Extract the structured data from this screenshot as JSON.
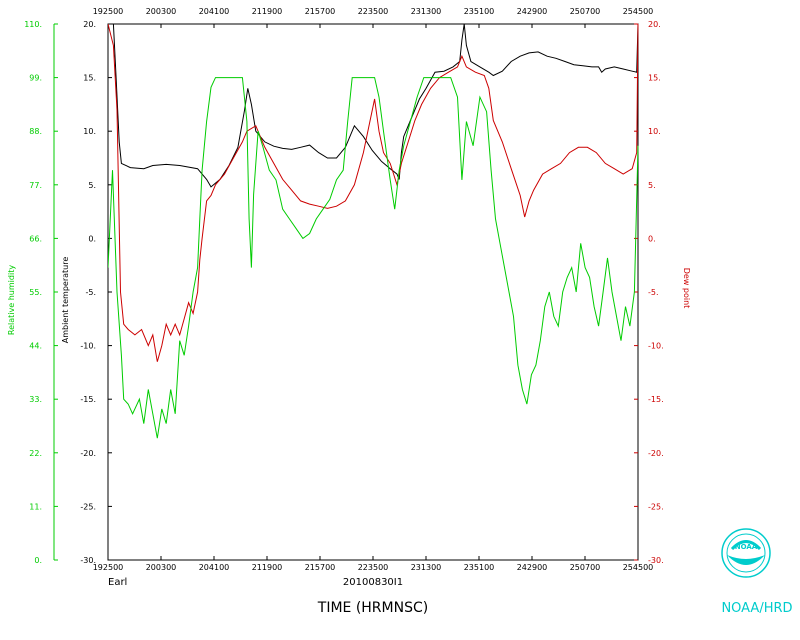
{
  "chart_data": {
    "type": "line",
    "time_ticks": [
      "192500",
      "200300",
      "204100",
      "211900",
      "215700",
      "223500",
      "231300",
      "235100",
      "242900",
      "250700",
      "254500"
    ],
    "time_range": [
      0,
      10
    ],
    "xlabel": "TIME (HRMNSC)",
    "flight_id": "20100830I1",
    "storm_name": "Earl",
    "agency": "NOAA/HRD",
    "logo_text": "NOAA",
    "rh_axis": {
      "label": "Relative humidity",
      "ticks": [
        "0.",
        "11.",
        "22.",
        "33.",
        "44.",
        "55.",
        "66.",
        "77.",
        "88.",
        "99.",
        "110."
      ],
      "range": [
        0,
        110
      ],
      "color": "#00cc00"
    },
    "temp_axis": {
      "label": "Ambient temperature",
      "ticks": [
        "-30.",
        "-25.",
        "-20.",
        "-15.",
        "-10.",
        "-5.",
        "0.",
        "5.",
        "10.",
        "15.",
        "20."
      ],
      "range": [
        -30,
        20
      ],
      "color": "#000000"
    },
    "dew_axis": {
      "label": "Dew point",
      "ticks": [
        "-30.",
        "-25.",
        "-20.",
        "-15.",
        "-10.",
        "-5.",
        "0.",
        "5.",
        "10.",
        "15.",
        "20."
      ],
      "range": [
        -30,
        20
      ],
      "color": "#cc0000"
    },
    "series": [
      {
        "key": "temperature",
        "color": "#000000",
        "points": [
          [
            0.0,
            20
          ],
          [
            0.12,
            20
          ],
          [
            0.18,
            15
          ],
          [
            0.25,
            9
          ],
          [
            0.3,
            7
          ],
          [
            0.5,
            6.6
          ],
          [
            0.8,
            6.5
          ],
          [
            1.0,
            6.8
          ],
          [
            1.3,
            6.9
          ],
          [
            1.6,
            6.8
          ],
          [
            2.0,
            6.5
          ],
          [
            2.2,
            5.5
          ],
          [
            2.3,
            4.8
          ],
          [
            2.5,
            5.5
          ],
          [
            2.7,
            6.8
          ],
          [
            2.9,
            8.5
          ],
          [
            3.05,
            12
          ],
          [
            3.12,
            14
          ],
          [
            3.2,
            12.5
          ],
          [
            3.3,
            10
          ],
          [
            3.5,
            9
          ],
          [
            3.7,
            8.6
          ],
          [
            3.9,
            8.4
          ],
          [
            4.1,
            8.3
          ],
          [
            4.3,
            8.5
          ],
          [
            4.5,
            8.7
          ],
          [
            4.7,
            8.0
          ],
          [
            4.9,
            7.5
          ],
          [
            5.1,
            7.5
          ],
          [
            5.3,
            8.5
          ],
          [
            5.5,
            10.5
          ],
          [
            5.7,
            9.5
          ],
          [
            5.9,
            8.2
          ],
          [
            6.1,
            7.2
          ],
          [
            6.3,
            6.5
          ],
          [
            6.45,
            6.0
          ],
          [
            6.5,
            5.5
          ],
          [
            6.55,
            8.0
          ],
          [
            6.6,
            9.5
          ],
          [
            6.75,
            11
          ],
          [
            6.85,
            12
          ],
          [
            6.95,
            13
          ],
          [
            7.1,
            14
          ],
          [
            7.3,
            15.5
          ],
          [
            7.5,
            15.6
          ],
          [
            7.7,
            16.0
          ],
          [
            7.85,
            16.5
          ],
          [
            7.9,
            18.5
          ],
          [
            7.95,
            20
          ],
          [
            8.0,
            18
          ],
          [
            8.1,
            16.5
          ],
          [
            8.3,
            16.0
          ],
          [
            8.5,
            15.5
          ],
          [
            8.6,
            15.2
          ],
          [
            8.8,
            15.6
          ],
          [
            9.0,
            16.5
          ],
          [
            9.2,
            17.0
          ],
          [
            9.4,
            17.3
          ],
          [
            9.6,
            17.4
          ],
          [
            9.8,
            17.0
          ],
          [
            10.0,
            16.8
          ],
          [
            10.2,
            16.5
          ],
          [
            10.4,
            16.2
          ],
          [
            10.6,
            16.1
          ],
          [
            10.8,
            16.0
          ],
          [
            10.95,
            16.0
          ],
          [
            11.02,
            15.5
          ],
          [
            11.1,
            15.8
          ],
          [
            11.3,
            16.0
          ],
          [
            11.5,
            15.8
          ],
          [
            11.7,
            15.6
          ],
          [
            11.8,
            15.5
          ],
          [
            11.83,
            20
          ]
        ]
      },
      {
        "key": "dew_point",
        "color": "#cc0000",
        "points": [
          [
            0.0,
            20
          ],
          [
            0.12,
            18
          ],
          [
            0.2,
            12
          ],
          [
            0.28,
            -5
          ],
          [
            0.35,
            -8
          ],
          [
            0.45,
            -8.5
          ],
          [
            0.6,
            -9
          ],
          [
            0.75,
            -8.5
          ],
          [
            0.9,
            -10
          ],
          [
            1.0,
            -9
          ],
          [
            1.1,
            -11.5
          ],
          [
            1.2,
            -10
          ],
          [
            1.3,
            -8
          ],
          [
            1.4,
            -9
          ],
          [
            1.5,
            -8
          ],
          [
            1.6,
            -9
          ],
          [
            1.7,
            -7.5
          ],
          [
            1.8,
            -6
          ],
          [
            1.9,
            -7
          ],
          [
            2.0,
            -5
          ],
          [
            2.05,
            -2
          ],
          [
            2.1,
            0
          ],
          [
            2.2,
            3.5
          ],
          [
            2.3,
            4
          ],
          [
            2.4,
            5
          ],
          [
            2.6,
            6
          ],
          [
            2.8,
            7.5
          ],
          [
            3.0,
            9
          ],
          [
            3.1,
            10
          ],
          [
            3.3,
            10.5
          ],
          [
            3.5,
            8.5
          ],
          [
            3.7,
            7
          ],
          [
            3.9,
            5.5
          ],
          [
            4.1,
            4.5
          ],
          [
            4.3,
            3.5
          ],
          [
            4.5,
            3.2
          ],
          [
            4.7,
            3.0
          ],
          [
            4.9,
            2.8
          ],
          [
            5.1,
            3.0
          ],
          [
            5.3,
            3.5
          ],
          [
            5.5,
            5
          ],
          [
            5.7,
            8
          ],
          [
            5.85,
            11
          ],
          [
            5.95,
            13
          ],
          [
            6.05,
            10
          ],
          [
            6.15,
            8
          ],
          [
            6.3,
            7
          ],
          [
            6.45,
            5
          ],
          [
            6.55,
            7
          ],
          [
            6.7,
            9
          ],
          [
            6.85,
            11
          ],
          [
            7.0,
            12.5
          ],
          [
            7.2,
            14
          ],
          [
            7.4,
            15
          ],
          [
            7.6,
            15.5
          ],
          [
            7.8,
            16
          ],
          [
            7.9,
            17
          ],
          [
            8.0,
            16
          ],
          [
            8.2,
            15.5
          ],
          [
            8.4,
            15.2
          ],
          [
            8.5,
            14
          ],
          [
            8.6,
            11
          ],
          [
            8.8,
            9
          ],
          [
            9.0,
            6.5
          ],
          [
            9.2,
            4
          ],
          [
            9.3,
            2
          ],
          [
            9.4,
            3.5
          ],
          [
            9.5,
            4.5
          ],
          [
            9.7,
            6
          ],
          [
            9.9,
            6.5
          ],
          [
            10.1,
            7
          ],
          [
            10.3,
            8
          ],
          [
            10.5,
            8.5
          ],
          [
            10.7,
            8.5
          ],
          [
            10.9,
            8
          ],
          [
            11.1,
            7
          ],
          [
            11.3,
            6.5
          ],
          [
            11.5,
            6
          ],
          [
            11.7,
            6.5
          ],
          [
            11.8,
            8
          ],
          [
            11.83,
            20
          ]
        ]
      },
      {
        "key": "relative_humidity",
        "color": "#00cc00",
        "points": [
          [
            0.0,
            60
          ],
          [
            0.1,
            80
          ],
          [
            0.2,
            55
          ],
          [
            0.3,
            42
          ],
          [
            0.35,
            33
          ],
          [
            0.45,
            32
          ],
          [
            0.55,
            30
          ],
          [
            0.7,
            33
          ],
          [
            0.8,
            28
          ],
          [
            0.9,
            35
          ],
          [
            1.0,
            30
          ],
          [
            1.1,
            25
          ],
          [
            1.2,
            31
          ],
          [
            1.3,
            28
          ],
          [
            1.4,
            35
          ],
          [
            1.5,
            30
          ],
          [
            1.6,
            45
          ],
          [
            1.7,
            42
          ],
          [
            1.8,
            48
          ],
          [
            1.9,
            55
          ],
          [
            2.0,
            60
          ],
          [
            2.05,
            70
          ],
          [
            2.1,
            80
          ],
          [
            2.2,
            90
          ],
          [
            2.3,
            97
          ],
          [
            2.4,
            99
          ],
          [
            2.5,
            99
          ],
          [
            2.6,
            99
          ],
          [
            2.7,
            99
          ],
          [
            2.8,
            99
          ],
          [
            2.9,
            99
          ],
          [
            3.0,
            99
          ],
          [
            3.1,
            90
          ],
          [
            3.15,
            70
          ],
          [
            3.2,
            60
          ],
          [
            3.25,
            75
          ],
          [
            3.35,
            88
          ],
          [
            3.45,
            85
          ],
          [
            3.6,
            80
          ],
          [
            3.75,
            78
          ],
          [
            3.9,
            72
          ],
          [
            4.05,
            70
          ],
          [
            4.2,
            68
          ],
          [
            4.35,
            66
          ],
          [
            4.5,
            67
          ],
          [
            4.65,
            70
          ],
          [
            4.8,
            72
          ],
          [
            4.95,
            74
          ],
          [
            5.1,
            78
          ],
          [
            5.25,
            80
          ],
          [
            5.35,
            90
          ],
          [
            5.45,
            99
          ],
          [
            5.55,
            99
          ],
          [
            5.65,
            99
          ],
          [
            5.75,
            99
          ],
          [
            5.85,
            99
          ],
          [
            5.95,
            99
          ],
          [
            6.05,
            95
          ],
          [
            6.15,
            88
          ],
          [
            6.3,
            78
          ],
          [
            6.4,
            72
          ],
          [
            6.5,
            80
          ],
          [
            6.6,
            85
          ],
          [
            6.75,
            90
          ],
          [
            6.9,
            95
          ],
          [
            7.05,
            99
          ],
          [
            7.2,
            99
          ],
          [
            7.35,
            99
          ],
          [
            7.5,
            99
          ],
          [
            7.65,
            99
          ],
          [
            7.8,
            95
          ],
          [
            7.9,
            78
          ],
          [
            8.0,
            90
          ],
          [
            8.15,
            85
          ],
          [
            8.3,
            95
          ],
          [
            8.45,
            92
          ],
          [
            8.55,
            80
          ],
          [
            8.65,
            70
          ],
          [
            8.75,
            65
          ],
          [
            8.85,
            60
          ],
          [
            8.95,
            55
          ],
          [
            9.05,
            50
          ],
          [
            9.15,
            40
          ],
          [
            9.25,
            35
          ],
          [
            9.35,
            32
          ],
          [
            9.45,
            38
          ],
          [
            9.55,
            40
          ],
          [
            9.65,
            45
          ],
          [
            9.75,
            52
          ],
          [
            9.85,
            55
          ],
          [
            9.95,
            50
          ],
          [
            10.05,
            48
          ],
          [
            10.15,
            55
          ],
          [
            10.25,
            58
          ],
          [
            10.35,
            60
          ],
          [
            10.45,
            55
          ],
          [
            10.55,
            65
          ],
          [
            10.65,
            60
          ],
          [
            10.75,
            58
          ],
          [
            10.85,
            52
          ],
          [
            10.95,
            48
          ],
          [
            11.05,
            55
          ],
          [
            11.15,
            62
          ],
          [
            11.25,
            55
          ],
          [
            11.35,
            50
          ],
          [
            11.45,
            45
          ],
          [
            11.55,
            52
          ],
          [
            11.65,
            48
          ],
          [
            11.75,
            55
          ],
          [
            11.83,
            85
          ]
        ]
      }
    ]
  }
}
